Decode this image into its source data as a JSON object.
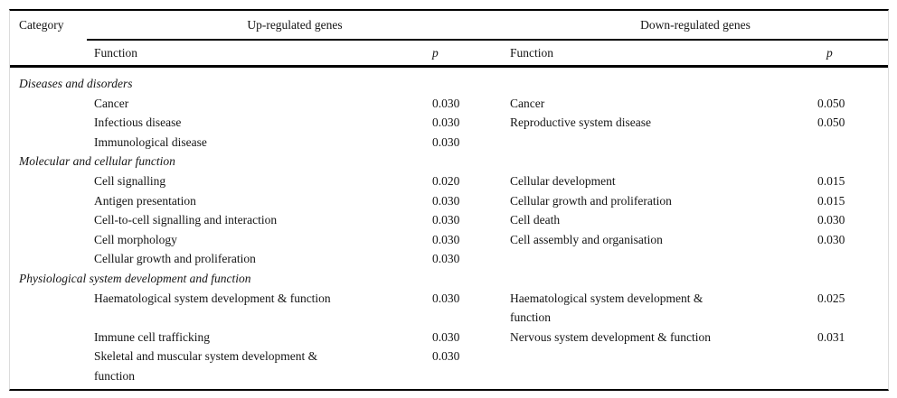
{
  "table": {
    "headers": {
      "category": "Category",
      "up_group": "Up-regulated genes",
      "down_group": "Down-regulated genes",
      "up_function": "Function",
      "up_p": "p",
      "down_function": "Function",
      "down_p": "p"
    },
    "colors": {
      "text": "#141414",
      "rule": "#000000",
      "frame_border": "#dcdcdc",
      "background": "#ffffff"
    },
    "sections": [
      {
        "category": "Diseases and disorders",
        "rows": [
          {
            "up_function": "Cancer",
            "up_p": "0.030",
            "down_function": "Cancer",
            "down_p": "0.050"
          },
          {
            "up_function": "Infectious disease",
            "up_p": "0.030",
            "down_function": "Reproductive system disease",
            "down_p": "0.050"
          },
          {
            "up_function": "Immunological disease",
            "up_p": "0.030",
            "down_function": "",
            "down_p": ""
          }
        ]
      },
      {
        "category": "Molecular and cellular function",
        "rows": [
          {
            "up_function": "Cell signalling",
            "up_p": "0.020",
            "down_function": "Cellular development",
            "down_p": "0.015"
          },
          {
            "up_function": "Antigen presentation",
            "up_p": "0.030",
            "down_function": "Cellular growth and proliferation",
            "down_p": "0.015"
          },
          {
            "up_function": "Cell-to-cell signalling and interaction",
            "up_p": "0.030",
            "down_function": "Cell death",
            "down_p": "0.030"
          },
          {
            "up_function": "Cell morphology",
            "up_p": "0.030",
            "down_function": "Cell assembly and organisation",
            "down_p": "0.030"
          },
          {
            "up_function": "Cellular growth and proliferation",
            "up_p": "0.030",
            "down_function": "",
            "down_p": ""
          }
        ]
      },
      {
        "category": "Physiological system development and function",
        "rows": [
          {
            "up_function": "Haematological system development & function",
            "up_p": "0.030",
            "down_function": "Haematological system development &\nfunction",
            "down_p": "0.025"
          },
          {
            "up_function": "Immune cell trafficking",
            "up_p": "0.030",
            "down_function": "Nervous system development & function",
            "down_p": "0.031"
          },
          {
            "up_function": "Skeletal and muscular system development &\nfunction",
            "up_p": "0.030",
            "down_function": "",
            "down_p": ""
          }
        ]
      }
    ]
  }
}
